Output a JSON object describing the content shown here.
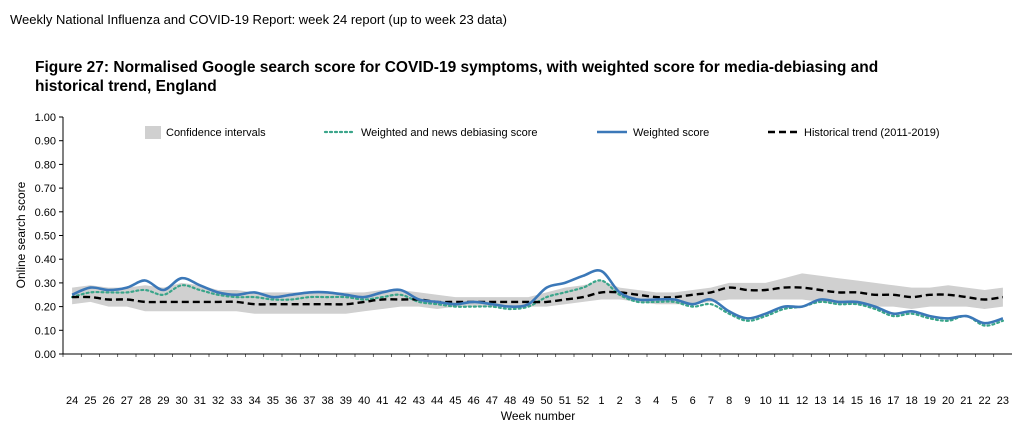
{
  "header": {
    "report_title": "Weekly National Influenza and COVID-19 Report: week 24 report (up to week 23 data)"
  },
  "figure": {
    "title": "Figure 27: Normalised Google search score for COVID-19 symptoms, with weighted score for media-debiasing and historical trend, England"
  },
  "chart_data": {
    "type": "line",
    "ylabel": "Online search score",
    "xlabel": "Week number",
    "ylim": [
      0,
      1
    ],
    "yticks": [
      "0.00",
      "0.10",
      "0.20",
      "0.30",
      "0.40",
      "0.50",
      "0.60",
      "0.70",
      "0.80",
      "0.90",
      "1.00"
    ],
    "categories": [
      "24",
      "25",
      "26",
      "27",
      "28",
      "29",
      "30",
      "31",
      "32",
      "33",
      "34",
      "35",
      "36",
      "37",
      "38",
      "39",
      "40",
      "41",
      "42",
      "43",
      "44",
      "45",
      "46",
      "47",
      "48",
      "49",
      "50",
      "51",
      "52",
      "1",
      "2",
      "3",
      "4",
      "5",
      "6",
      "7",
      "8",
      "9",
      "10",
      "11",
      "12",
      "13",
      "14",
      "15",
      "16",
      "17",
      "18",
      "19",
      "20",
      "21",
      "22",
      "23"
    ],
    "grid": false,
    "legend_position": "top",
    "colors": {
      "ci": "#d0d0d0",
      "weighted_news": "#3aa58a",
      "weighted": "#3b78b8",
      "historical": "#000000"
    },
    "legend": [
      {
        "key": "ci",
        "label": "Confidence intervals"
      },
      {
        "key": "weighted_news",
        "label": "Weighted and news debiasing score"
      },
      {
        "key": "weighted",
        "label": "Weighted score"
      },
      {
        "key": "historical",
        "label": "Historical trend (2011-2019)"
      }
    ],
    "series": [
      {
        "key": "weighted",
        "name": "Weighted score",
        "values": [
          0.25,
          0.28,
          0.27,
          0.28,
          0.31,
          0.27,
          0.32,
          0.29,
          0.26,
          0.25,
          0.26,
          0.24,
          0.25,
          0.26,
          0.26,
          0.25,
          0.24,
          0.26,
          0.27,
          0.23,
          0.22,
          0.21,
          0.22,
          0.21,
          0.2,
          0.21,
          0.28,
          0.3,
          0.33,
          0.35,
          0.26,
          0.23,
          0.23,
          0.23,
          0.21,
          0.23,
          0.18,
          0.15,
          0.17,
          0.2,
          0.2,
          0.23,
          0.22,
          0.22,
          0.2,
          0.17,
          0.18,
          0.16,
          0.15,
          0.16,
          0.13,
          0.15
        ]
      },
      {
        "key": "weighted_news",
        "name": "Weighted and news debiasing score",
        "values": [
          0.24,
          0.26,
          0.26,
          0.26,
          0.27,
          0.25,
          0.29,
          0.27,
          0.25,
          0.24,
          0.24,
          0.23,
          0.23,
          0.24,
          0.24,
          0.24,
          0.23,
          0.24,
          0.25,
          0.22,
          0.21,
          0.2,
          0.2,
          0.2,
          0.19,
          0.2,
          0.24,
          0.26,
          0.28,
          0.31,
          0.25,
          0.22,
          0.22,
          0.22,
          0.2,
          0.21,
          0.17,
          0.14,
          0.16,
          0.19,
          0.2,
          0.22,
          0.21,
          0.21,
          0.19,
          0.16,
          0.17,
          0.15,
          0.14,
          0.16,
          0.12,
          0.14
        ]
      },
      {
        "key": "historical",
        "name": "Historical trend (2011-2019)",
        "values": [
          0.24,
          0.24,
          0.23,
          0.23,
          0.22,
          0.22,
          0.22,
          0.22,
          0.22,
          0.22,
          0.21,
          0.21,
          0.21,
          0.21,
          0.21,
          0.21,
          0.22,
          0.23,
          0.23,
          0.23,
          0.22,
          0.22,
          0.22,
          0.22,
          0.22,
          0.22,
          0.22,
          0.23,
          0.24,
          0.26,
          0.26,
          0.25,
          0.24,
          0.24,
          0.25,
          0.26,
          0.28,
          0.27,
          0.27,
          0.28,
          0.28,
          0.27,
          0.26,
          0.26,
          0.25,
          0.25,
          0.24,
          0.25,
          0.25,
          0.24,
          0.23,
          0.24
        ]
      }
    ],
    "ci": {
      "upper": [
        0.28,
        0.29,
        0.28,
        0.28,
        0.29,
        0.28,
        0.3,
        0.29,
        0.27,
        0.27,
        0.26,
        0.26,
        0.26,
        0.26,
        0.26,
        0.26,
        0.26,
        0.27,
        0.27,
        0.26,
        0.25,
        0.24,
        0.24,
        0.24,
        0.24,
        0.24,
        0.26,
        0.28,
        0.29,
        0.31,
        0.28,
        0.27,
        0.26,
        0.26,
        0.27,
        0.28,
        0.3,
        0.3,
        0.3,
        0.32,
        0.34,
        0.33,
        0.32,
        0.31,
        0.3,
        0.29,
        0.28,
        0.28,
        0.29,
        0.28,
        0.27,
        0.28
      ],
      "lower": [
        0.21,
        0.22,
        0.2,
        0.2,
        0.18,
        0.18,
        0.18,
        0.18,
        0.18,
        0.18,
        0.17,
        0.17,
        0.17,
        0.17,
        0.17,
        0.17,
        0.18,
        0.19,
        0.2,
        0.2,
        0.19,
        0.2,
        0.2,
        0.2,
        0.2,
        0.2,
        0.2,
        0.21,
        0.22,
        0.23,
        0.23,
        0.22,
        0.21,
        0.21,
        0.21,
        0.22,
        0.23,
        0.23,
        0.23,
        0.23,
        0.23,
        0.22,
        0.21,
        0.21,
        0.2,
        0.2,
        0.19,
        0.2,
        0.2,
        0.2,
        0.19,
        0.2
      ]
    }
  }
}
